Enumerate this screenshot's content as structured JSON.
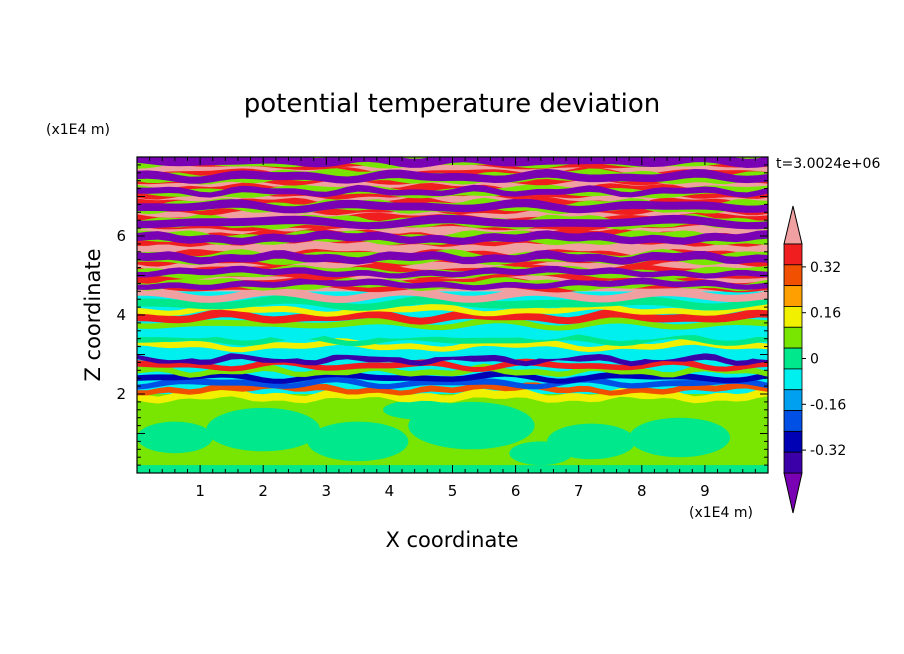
{
  "chart_data": {
    "type": "heatmap",
    "title": "potential temperature deviation",
    "xlabel": "X coordinate",
    "ylabel": "Z coordinate",
    "x_unit": "(x1E4 m)",
    "y_unit": "(x1E4 m)",
    "time_label": "t=3.0024e+06",
    "xlim": [
      0,
      10
    ],
    "ylim": [
      0,
      8
    ],
    "x_ticks": [
      "1",
      "2",
      "3",
      "4",
      "5",
      "6",
      "7",
      "8",
      "9"
    ],
    "y_ticks": [
      "2",
      "4",
      "6"
    ],
    "colorbar": {
      "levels": [
        -0.48,
        -0.4,
        -0.32,
        -0.24,
        -0.16,
        -0.08,
        0,
        0.08,
        0.16,
        0.24,
        0.32,
        0.4,
        0.48
      ],
      "colors": [
        "#7a00b4",
        "#3c00a8",
        "#0000b4",
        "#0050e6",
        "#00a0f0",
        "#00f0f0",
        "#00e88c",
        "#78e600",
        "#f0f000",
        "#ffa000",
        "#f05000",
        "#f01e1e",
        "#f0a0a0"
      ],
      "labels": [
        "0.32",
        "0.16",
        "0",
        "-0.16",
        "-0.32"
      ],
      "extend": "both"
    },
    "field_description_bands": [
      {
        "z": [
          0.0,
          2.0
        ],
        "value_class": "low-positive-and-near-zero"
      },
      {
        "z": [
          2.0,
          4.6
        ],
        "value_class": "mixed"
      },
      {
        "z": [
          4.6,
          8.0
        ],
        "value_class": "alternating-extremes"
      }
    ]
  }
}
